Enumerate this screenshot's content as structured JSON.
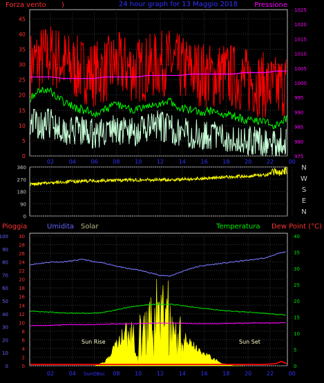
{
  "chart_data": [
    {
      "type": "line",
      "title": "24 hour graph for 13 Maggio 2018",
      "y_left_label": "Forza vento",
      "y_left_label_suffix": ")",
      "y_right_label": "Pressione",
      "y_left_ticks": [
        0,
        5,
        10,
        15,
        20,
        25,
        30,
        35,
        40,
        45
      ],
      "y_right_ticks": [
        975,
        980,
        985,
        990,
        995,
        1000,
        1005,
        1010,
        1015,
        1020,
        1025
      ],
      "ylim_left": [
        0,
        48
      ],
      "ylim_right": [
        975,
        1025
      ],
      "x_ticks": [
        "02",
        "04",
        "06",
        "08",
        "10",
        "12",
        "14",
        "16",
        "18",
        "20",
        "22",
        "00"
      ],
      "grid": true,
      "series": [
        {
          "color": "#ff0000",
          "axis": "left",
          "x": [
            0,
            1,
            2,
            3,
            4,
            5,
            6,
            7,
            8,
            9,
            10,
            11,
            12,
            13,
            14,
            15,
            16,
            17,
            18,
            19,
            20,
            21,
            22,
            23,
            24
          ],
          "y": [
            30,
            32,
            33,
            31,
            29,
            28,
            27,
            28,
            30,
            29,
            28,
            29,
            30,
            31,
            29,
            28,
            27,
            26,
            27,
            26,
            25,
            24,
            23,
            22,
            24
          ]
        },
        {
          "color": "#00ff00",
          "axis": "left",
          "x": [
            0,
            1,
            2,
            3,
            4,
            5,
            6,
            7,
            8,
            9,
            10,
            11,
            12,
            13,
            14,
            15,
            16,
            17,
            18,
            19,
            20,
            21,
            22,
            23,
            24
          ],
          "y": [
            19,
            22,
            21,
            18,
            16,
            15,
            14,
            15,
            17,
            16,
            15,
            16,
            17,
            18,
            16,
            15,
            14,
            15,
            14,
            13,
            12,
            12,
            11,
            10,
            12
          ]
        },
        {
          "color": "#c8ffd8",
          "axis": "left",
          "x": [
            0,
            1,
            2,
            3,
            4,
            5,
            6,
            7,
            8,
            9,
            10,
            11,
            12,
            13,
            14,
            15,
            16,
            17,
            18,
            19,
            20,
            21,
            22,
            23,
            24
          ],
          "y": [
            12,
            10,
            11,
            9,
            8,
            8,
            7,
            8,
            9,
            8,
            8,
            9,
            10,
            9,
            8,
            7,
            7,
            7,
            6,
            6,
            5,
            5,
            4,
            4,
            5
          ]
        },
        {
          "color": "#ff00ff",
          "axis": "right",
          "x": [
            0,
            1,
            2,
            3,
            4,
            5,
            6,
            7,
            8,
            9,
            10,
            11,
            12,
            13,
            14,
            15,
            16,
            17,
            18,
            19,
            20,
            21,
            22,
            23,
            24
          ],
          "y": [
            1002,
            1002,
            1002,
            1001.5,
            1001.5,
            1001.5,
            1001.5,
            1002,
            1002,
            1002,
            1002,
            1002.5,
            1002.5,
            1002.5,
            1002.5,
            1003,
            1003,
            1003,
            1003,
            1003,
            1003.5,
            1003.5,
            1003.5,
            1004,
            1004
          ]
        }
      ]
    },
    {
      "type": "scatter",
      "y_ticks": [
        0,
        90,
        180,
        270,
        360
      ],
      "ylim": [
        0,
        360
      ],
      "y_right_ticks": [
        "N",
        "W",
        "S",
        "E",
        "N"
      ],
      "grid": true,
      "series": [
        {
          "color": "#ffff00",
          "x": [
            0,
            1,
            2,
            3,
            4,
            5,
            6,
            7,
            8,
            9,
            10,
            11,
            12,
            13,
            14,
            15,
            16,
            17,
            18,
            19,
            20,
            21,
            22,
            23,
            24
          ],
          "y": [
            232,
            238,
            244,
            249,
            254,
            257,
            258,
            260,
            262,
            264,
            265,
            266,
            266,
            267,
            268,
            272,
            276,
            280,
            284,
            288,
            292,
            296,
            302,
            322,
            330
          ]
        }
      ]
    },
    {
      "type": "line",
      "legend": [
        "Pioggia",
        "Umidita",
        "Solar",
        "Temperatura",
        "Dew Point (°C)"
      ],
      "legend_colors": [
        "#ff3333",
        "#6666ff",
        "#bbbb88",
        "#00ee00",
        "#ff3333"
      ],
      "y_axis_rain_ticks": [
        0,
        2,
        4,
        6,
        8,
        10,
        12,
        14,
        16,
        18,
        20,
        22,
        24,
        26,
        28,
        30
      ],
      "y_axis_humidity_ticks": [
        0,
        10,
        20,
        30,
        40,
        50,
        60,
        70,
        80,
        90,
        100
      ],
      "y_right_ticks": [
        0,
        5,
        10,
        15,
        20,
        25,
        30,
        35,
        40
      ],
      "ylim_humidity": [
        0,
        100
      ],
      "ylim_right": [
        0,
        40
      ],
      "x_ticks": [
        "02",
        "04",
        "SunOBsc",
        "08",
        "10",
        "12",
        "14",
        "16",
        "18",
        "20",
        "22",
        "00"
      ],
      "annotations": [
        "Sun Rise",
        "Sun Set"
      ],
      "grid": true,
      "series": [
        {
          "color": "#7777ff",
          "axis": "humidity",
          "x": [
            0,
            1,
            2,
            3,
            4,
            5,
            6,
            7,
            8,
            9,
            10,
            11,
            12,
            13,
            14,
            15,
            16,
            17,
            18,
            19,
            20,
            21,
            22,
            23,
            24
          ],
          "y": [
            78,
            79,
            80,
            80,
            81,
            82,
            80,
            79,
            77,
            75,
            74,
            72,
            70,
            69,
            72,
            75,
            77,
            78,
            79,
            80,
            81,
            82,
            83,
            86,
            88
          ]
        },
        {
          "color": "#00dd00",
          "axis": "right",
          "x": [
            0,
            1,
            2,
            3,
            4,
            5,
            6,
            7,
            8,
            9,
            10,
            11,
            12,
            13,
            14,
            15,
            16,
            17,
            18,
            19,
            20,
            21,
            22,
            23,
            24
          ],
          "y": [
            16.8,
            16.6,
            16.5,
            16.3,
            16.2,
            16.2,
            16.2,
            16.5,
            17.2,
            17.9,
            18.4,
            18.8,
            19.0,
            19.0,
            18.6,
            18.2,
            17.8,
            17.4,
            17.0,
            16.8,
            16.6,
            16.4,
            16.2,
            15.8,
            15.6
          ]
        },
        {
          "color": "#ff00ff",
          "axis": "right",
          "x": [
            0,
            1,
            2,
            3,
            4,
            5,
            6,
            7,
            8,
            9,
            10,
            11,
            12,
            13,
            14,
            15,
            16,
            17,
            18,
            19,
            20,
            21,
            22,
            23,
            24
          ],
          "y": [
            12.4,
            12.4,
            12.5,
            12.6,
            12.7,
            12.7,
            12.7,
            12.8,
            12.9,
            12.9,
            13.0,
            13.1,
            13.2,
            13.2,
            13.1,
            13.0,
            13.0,
            13.0,
            13.0,
            13.1,
            13.1,
            13.2,
            13.2,
            13.2,
            13.3
          ]
        },
        {
          "color": "#ffff00",
          "axis": "humidity",
          "x": [
            6,
            7,
            8,
            9,
            10,
            11,
            12,
            13,
            14,
            15,
            16,
            17,
            18,
            19,
            20
          ],
          "y": [
            0,
            3,
            16,
            30,
            33,
            36,
            57,
            50,
            30,
            18,
            12,
            6,
            2,
            0,
            0
          ]
        },
        {
          "color": "#ff0000",
          "axis": "rain",
          "x": [
            0,
            4,
            8,
            12,
            16,
            20,
            22,
            23,
            23.5,
            24
          ],
          "y": [
            0.3,
            0.3,
            0.3,
            0.3,
            0.3,
            0.3,
            0.3,
            0.5,
            1.0,
            0.5
          ]
        }
      ]
    }
  ]
}
